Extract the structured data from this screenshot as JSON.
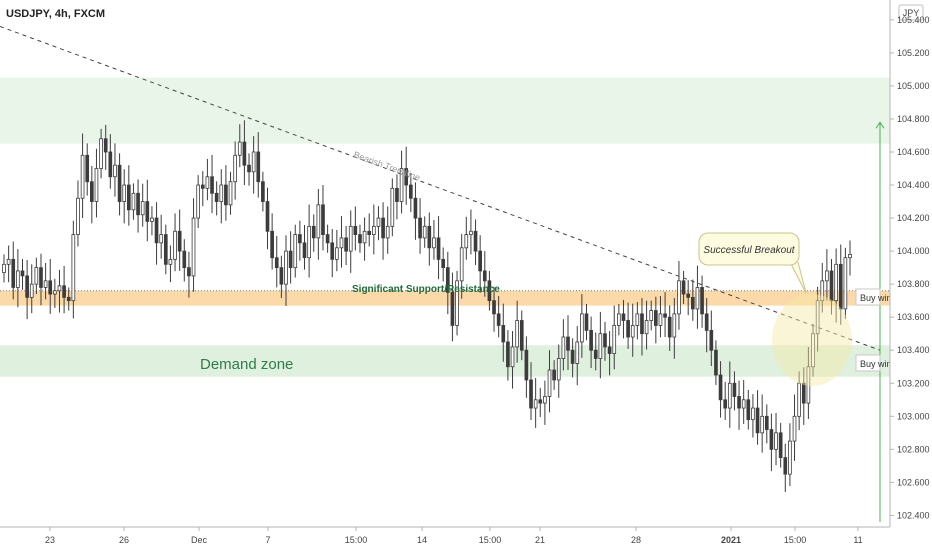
{
  "header": {
    "title": "USDJPY, 4h, FXCM"
  },
  "price_axis": {
    "currency_label": "JPY",
    "ticks": [
      "105.400",
      "105.200",
      "105.000",
      "104.800",
      "104.600",
      "104.400",
      "104.200",
      "104.000",
      "103.800",
      "103.600",
      "103.400",
      "103.200",
      "103.000",
      "102.800",
      "102.600",
      "102.400"
    ]
  },
  "time_axis": {
    "ticks": [
      "23",
      "26",
      "Dec",
      "7",
      "15:00",
      "14",
      "15:00",
      "21",
      "28",
      "2021",
      "15:00",
      "11"
    ]
  },
  "annotations": {
    "trendline_label": "Bearish Trendline",
    "support_label": "Significant Support/Resistance",
    "demand_label": "Demand zone",
    "breakout_label": "Successful Breakout",
    "buy_label_1": "Buy wind",
    "buy_label_2": "Buy wind"
  },
  "colors": {
    "bull": "#ffffff",
    "bear": "#3c3c3c",
    "supply_zone": "#eaf5ea",
    "demand_zone": "#dff0df",
    "support_band": "#fbd9a8",
    "support_text": "#1f6b3a",
    "demand_text": "#2e7d4a",
    "arrow": "#4caf50",
    "callout_fill": "#fdfbe0"
  },
  "chart_data": {
    "type": "candlestick",
    "symbol": "USDJPY",
    "timeframe": "4h",
    "source": "FXCM",
    "ylim": [
      102.33,
      105.52
    ],
    "zones": [
      {
        "name": "supply",
        "from": 104.65,
        "to": 105.05
      },
      {
        "name": "Significant Support/Resistance",
        "from": 103.67,
        "to": 103.76
      },
      {
        "name": "Demand zone",
        "from": 103.24,
        "to": 103.43
      }
    ],
    "trendline": {
      "label": "Bearish Trendline",
      "start": 105.36,
      "end": 103.4
    },
    "breakout_target": 104.78,
    "closes": [
      103.92,
      103.95,
      103.78,
      103.88,
      103.85,
      103.72,
      103.8,
      103.9,
      103.78,
      103.82,
      103.74,
      103.76,
      103.79,
      103.72,
      103.7,
      104.1,
      104.32,
      104.58,
      104.42,
      104.3,
      104.5,
      104.68,
      104.6,
      104.45,
      104.52,
      104.3,
      104.4,
      104.25,
      104.35,
      104.22,
      104.3,
      104.18,
      104.2,
      104.05,
      104.1,
      103.92,
      103.95,
      104.12,
      104.0,
      103.9,
      103.85,
      104.2,
      104.4,
      104.38,
      104.45,
      104.35,
      104.3,
      104.4,
      104.28,
      104.42,
      104.58,
      104.66,
      104.52,
      104.48,
      104.6,
      104.42,
      104.3,
      104.12,
      103.96,
      103.9,
      103.8,
      104.0,
      103.9,
      104.1,
      104.05,
      103.96,
      104.15,
      104.08,
      104.28,
      104.1,
      104.05,
      103.95,
      104.02,
      104.08,
      104.0,
      104.15,
      104.1,
      104.05,
      104.12,
      104.1,
      104.15,
      104.2,
      104.08,
      104.15,
      104.38,
      104.3,
      104.5,
      104.4,
      104.32,
      104.2,
      104.08,
      104.15,
      104.02,
      104.08,
      103.95,
      103.9,
      103.75,
      103.55,
      103.82,
      104.02,
      104.1,
      104.12,
      104.0,
      103.88,
      103.82,
      103.7,
      103.62,
      103.55,
      103.45,
      103.3,
      103.42,
      103.58,
      103.4,
      103.22,
      103.05,
      103.1,
      103.08,
      103.12,
      103.28,
      103.22,
      103.35,
      103.48,
      103.4,
      103.32,
      103.45,
      103.62,
      103.52,
      103.4,
      103.35,
      103.5,
      103.42,
      103.38,
      103.55,
      103.62,
      103.58,
      103.48,
      103.55,
      103.62,
      103.5,
      103.58,
      103.64,
      103.55,
      103.62,
      103.6,
      103.48,
      103.62,
      103.82,
      103.74,
      103.72,
      103.65,
      103.78,
      103.62,
      103.52,
      103.4,
      103.25,
      103.1,
      103.05,
      103.2,
      103.12,
      103.05,
      103.1,
      102.98,
      103.05,
      102.9,
      103.0,
      102.92,
      102.8,
      102.9,
      102.75,
      102.65,
      102.85,
      103.0,
      103.2,
      103.08,
      103.3,
      103.5,
      103.7,
      103.82,
      103.88,
      103.7,
      103.92,
      103.65,
      103.96,
      103.98
    ]
  }
}
